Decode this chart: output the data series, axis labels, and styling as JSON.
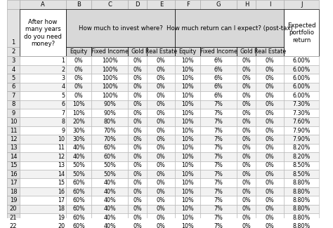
{
  "years": [
    1,
    2,
    3,
    4,
    5,
    6,
    7,
    8,
    9,
    10,
    11,
    12,
    13,
    14,
    15,
    16,
    17,
    18,
    19,
    20
  ],
  "invest_equity": [
    "0%",
    "0%",
    "0%",
    "0%",
    "0%",
    "10%",
    "10%",
    "20%",
    "30%",
    "30%",
    "40%",
    "40%",
    "50%",
    "50%",
    "60%",
    "60%",
    "60%",
    "60%",
    "60%",
    "60%"
  ],
  "invest_fixed": [
    "100%",
    "100%",
    "100%",
    "100%",
    "100%",
    "90%",
    "90%",
    "80%",
    "70%",
    "70%",
    "60%",
    "60%",
    "50%",
    "50%",
    "40%",
    "40%",
    "40%",
    "40%",
    "40%",
    "40%"
  ],
  "invest_gold": [
    "0%",
    "0%",
    "0%",
    "0%",
    "0%",
    "0%",
    "0%",
    "0%",
    "0%",
    "0%",
    "0%",
    "0%",
    "0%",
    "0%",
    "0%",
    "0%",
    "0%",
    "0%",
    "0%",
    "0%"
  ],
  "invest_realestate": [
    "0%",
    "0%",
    "0%",
    "0%",
    "0%",
    "0%",
    "0%",
    "0%",
    "0%",
    "0%",
    "0%",
    "0%",
    "0%",
    "0%",
    "0%",
    "0%",
    "0%",
    "0%",
    "0%",
    "0%"
  ],
  "return_equity": [
    "10%",
    "10%",
    "10%",
    "10%",
    "10%",
    "10%",
    "10%",
    "10%",
    "10%",
    "10%",
    "10%",
    "10%",
    "10%",
    "10%",
    "10%",
    "10%",
    "10%",
    "10%",
    "10%",
    "10%"
  ],
  "return_fixed": [
    "6%",
    "6%",
    "6%",
    "6%",
    "6%",
    "7%",
    "7%",
    "7%",
    "7%",
    "7%",
    "7%",
    "7%",
    "7%",
    "7%",
    "7%",
    "7%",
    "7%",
    "7%",
    "7%",
    "7%"
  ],
  "return_gold": [
    "0%",
    "0%",
    "0%",
    "0%",
    "0%",
    "0%",
    "0%",
    "0%",
    "0%",
    "0%",
    "0%",
    "0%",
    "0%",
    "0%",
    "0%",
    "0%",
    "0%",
    "0%",
    "0%",
    "0%"
  ],
  "return_realestate": [
    "0%",
    "0%",
    "0%",
    "0%",
    "0%",
    "0%",
    "0%",
    "0%",
    "0%",
    "0%",
    "0%",
    "0%",
    "0%",
    "0%",
    "0%",
    "0%",
    "0%",
    "0%",
    "0%",
    "0%"
  ],
  "portfolio_return": [
    "6.00%",
    "6.00%",
    "6.00%",
    "6.00%",
    "6.00%",
    "7.30%",
    "7.30%",
    "7.60%",
    "7.90%",
    "7.90%",
    "8.20%",
    "8.20%",
    "8.50%",
    "8.50%",
    "8.80%",
    "8.80%",
    "8.80%",
    "8.80%",
    "8.80%",
    "8.80%"
  ],
  "col_letters": [
    "",
    "A",
    "B",
    "C",
    "D",
    "E",
    "F",
    "G",
    "H",
    "I",
    "J"
  ],
  "excel_header_bg": "#e2e2e2",
  "cell_bg_white": "#ffffff",
  "cell_bg_gray": "#f2f2f2",
  "invest_header_bg": "#d8d8d8",
  "return_header_bg": "#d8d8d8",
  "row_num_bg": "#e2e2e2",
  "grid_color": "#b0b0b0",
  "border_color": "#000000",
  "text_color": "#000000",
  "font_size": 5.8,
  "header_font_size": 6.2,
  "col_letter_font_size": 6.0
}
